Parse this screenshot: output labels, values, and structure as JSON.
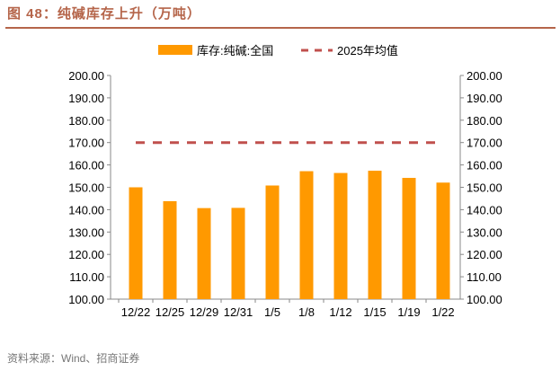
{
  "title": "图 48：纯碱库存上升（万吨）",
  "source": "资料来源：Wind、招商证券",
  "colors": {
    "bar": "#ff9900",
    "avg_line": "#c0504d",
    "title": "#b5654a"
  },
  "chart_data": {
    "type": "bar",
    "title": "纯碱库存上升（万吨）",
    "categories": [
      "12/22",
      "12/25",
      "12/29",
      "12/31",
      "1/5",
      "1/8",
      "1/12",
      "1/15",
      "1/19",
      "1/22"
    ],
    "series": [
      {
        "name": "库存:纯碱:全国",
        "type": "bar",
        "values": [
          150.0,
          143.8,
          140.7,
          140.8,
          150.8,
          157.2,
          156.4,
          157.4,
          154.2,
          152.1
        ]
      },
      {
        "name": "2025年均值",
        "type": "line-dashed",
        "values": [
          170,
          170,
          170,
          170,
          170,
          170,
          170,
          170,
          170,
          170
        ]
      }
    ],
    "ylim": [
      100,
      200
    ],
    "yticks": [
      "100.00",
      "110.00",
      "120.00",
      "130.00",
      "140.00",
      "150.00",
      "160.00",
      "170.00",
      "180.00",
      "190.00",
      "200.00"
    ],
    "secondary_ylim": [
      100,
      200
    ],
    "legend": "top-center",
    "grid": false,
    "xlabel": "",
    "ylabel": ""
  }
}
